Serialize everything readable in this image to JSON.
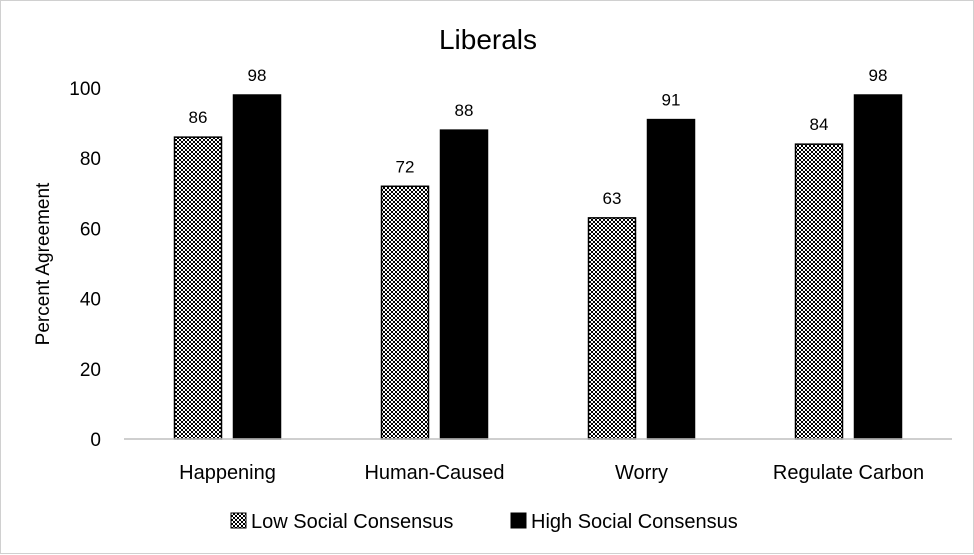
{
  "chart_data": {
    "type": "bar",
    "title": "Liberals",
    "xlabel": "",
    "ylabel": "Percent Agreement",
    "categories": [
      "Happening",
      "Human-Caused",
      "Worry",
      "Regulate Carbon"
    ],
    "series": [
      {
        "name": "Low Social Consensus",
        "values": [
          86,
          72,
          63,
          84
        ],
        "fill": "pattern-checker"
      },
      {
        "name": "High Social Consensus",
        "values": [
          98,
          88,
          91,
          98
        ],
        "fill": "#000000"
      }
    ],
    "ylim": [
      0,
      100
    ],
    "yticks": [
      0,
      20,
      40,
      60,
      80,
      100
    ],
    "grid": false,
    "legend_position": "bottom",
    "data_labels": true
  }
}
